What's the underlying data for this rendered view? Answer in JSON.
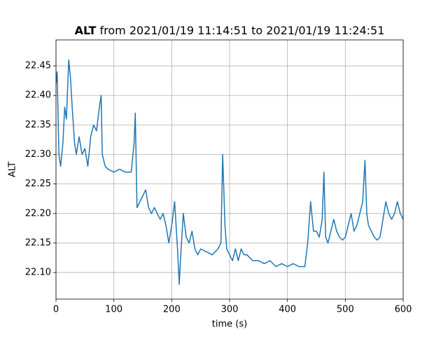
{
  "chart_data": {
    "type": "line",
    "title_bold": "ALT",
    "title": "from 2021/01/19 11:14:51 to 2021/01/19 11:24:51",
    "xlabel": "time (s)",
    "ylabel": "ALT",
    "xlim": [
      0,
      600
    ],
    "ylim": [
      22.055,
      22.494
    ],
    "xticks": [
      0,
      100,
      200,
      300,
      400,
      500,
      600
    ],
    "yticks": [
      {
        "value": 22.1,
        "label": "22.10"
      },
      22.15,
      {
        "value": 22.2,
        "label": "22.20"
      },
      22.25,
      {
        "value": 22.3,
        "label": "22.30"
      },
      22.35,
      {
        "value": 22.4,
        "label": "22.40"
      },
      22.45
    ],
    "grid": true,
    "series": [
      {
        "name": "ALT",
        "color": "#1f77b4",
        "x": [
          0,
          2,
          5,
          8,
          12,
          15,
          18,
          22,
          25,
          28,
          32,
          35,
          40,
          45,
          50,
          55,
          60,
          65,
          70,
          75,
          78,
          80,
          85,
          90,
          100,
          110,
          120,
          130,
          135,
          137,
          140,
          145,
          150,
          155,
          160,
          165,
          170,
          175,
          180,
          185,
          190,
          195,
          200,
          205,
          210,
          213,
          215,
          220,
          225,
          230,
          235,
          240,
          245,
          250,
          260,
          270,
          280,
          285,
          288,
          292,
          295,
          300,
          305,
          310,
          315,
          320,
          325,
          330,
          340,
          350,
          360,
          370,
          380,
          390,
          400,
          410,
          420,
          430,
          435,
          440,
          445,
          450,
          455,
          460,
          463,
          466,
          470,
          475,
          480,
          485,
          490,
          495,
          500,
          505,
          510,
          515,
          520,
          525,
          530,
          534,
          537,
          540,
          545,
          550,
          555,
          560,
          565,
          570,
          575,
          580,
          585,
          590,
          595,
          600
        ],
        "values": [
          22.42,
          22.44,
          22.3,
          22.28,
          22.32,
          22.38,
          22.36,
          22.46,
          22.43,
          22.38,
          22.32,
          22.3,
          22.33,
          22.3,
          22.31,
          22.28,
          22.33,
          22.35,
          22.34,
          22.38,
          22.4,
          22.3,
          22.28,
          22.275,
          22.27,
          22.275,
          22.27,
          22.27,
          22.32,
          22.37,
          22.21,
          22.22,
          22.23,
          22.24,
          22.21,
          22.2,
          22.21,
          22.2,
          22.19,
          22.2,
          22.18,
          22.15,
          22.18,
          22.22,
          22.14,
          22.08,
          22.12,
          22.2,
          22.16,
          22.15,
          22.17,
          22.14,
          22.13,
          22.14,
          22.135,
          22.13,
          22.14,
          22.15,
          22.3,
          22.18,
          22.14,
          22.13,
          22.12,
          22.14,
          22.12,
          22.14,
          22.13,
          22.13,
          22.12,
          22.12,
          22.115,
          22.12,
          22.11,
          22.115,
          22.11,
          22.115,
          22.11,
          22.11,
          22.15,
          22.22,
          22.17,
          22.17,
          22.16,
          22.19,
          22.27,
          22.16,
          22.15,
          22.17,
          22.19,
          22.17,
          22.16,
          22.155,
          22.16,
          22.18,
          22.2,
          22.17,
          22.18,
          22.2,
          22.22,
          22.29,
          22.2,
          22.18,
          22.17,
          22.16,
          22.155,
          22.16,
          22.19,
          22.22,
          22.2,
          22.19,
          22.2,
          22.22,
          22.2,
          22.19
        ]
      }
    ]
  }
}
